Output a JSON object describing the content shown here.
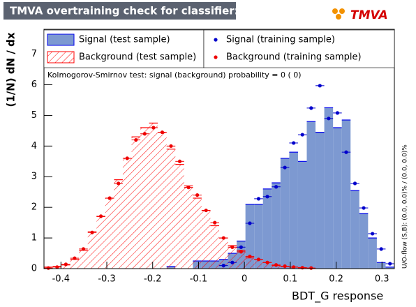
{
  "chart_data": {
    "type": "histogram",
    "title": "TMVA overtraining check for classifier: BDT_G",
    "logo": "TMVA",
    "xlabel": "BDT_G response",
    "ylabel": "(1/N) dN / dx",
    "annotation": "Kolmogorov-Smirnov test: signal (background) probability =    0 (    0)",
    "side_note": "U/O-flow (S,B): (0.0, 0.0)% / (0.0, 0.0)%",
    "xlim": [
      -0.437,
      0.327
    ],
    "ylim": [
      0,
      7.81
    ],
    "xticks": [
      -0.4,
      -0.3,
      -0.2,
      -0.1,
      0,
      0.1,
      0.2,
      0.3
    ],
    "yticks": [
      0,
      1,
      2,
      3,
      4,
      5,
      6,
      7
    ],
    "bins": [
      -0.437,
      -0.4179,
      -0.3988,
      -0.3797,
      -0.3606,
      -0.3415,
      -0.3224,
      -0.3033,
      -0.2842,
      -0.2651,
      -0.246,
      -0.2269,
      -0.2078,
      -0.1887,
      -0.1696,
      -0.1505,
      -0.1314,
      -0.1123,
      -0.0932,
      -0.0741,
      -0.055,
      -0.0359,
      -0.0168,
      0.0023,
      0.0214,
      0.0405,
      0.0596,
      0.0787,
      0.0978,
      0.1169,
      0.136,
      0.1551,
      0.1742,
      0.1933,
      0.2124,
      0.2315,
      0.2506,
      0.2697,
      0.2888,
      0.3079,
      0.327
    ],
    "series": [
      {
        "name": "Signal (test sample)",
        "style": "filled",
        "color": "#7d99d1",
        "edge": "#0000ee",
        "values": [
          0,
          0,
          0,
          0,
          0,
          0,
          0,
          0,
          0,
          0,
          0,
          0,
          0,
          0,
          0.07,
          0,
          0,
          0.25,
          0.25,
          0.25,
          0.3,
          0.5,
          0.9,
          2.1,
          2.1,
          2.6,
          2.8,
          3.6,
          3.8,
          3.5,
          4.8,
          4.45,
          5.25,
          4.6,
          4.85,
          2.55,
          1.8,
          1.0,
          0.2,
          0.05
        ]
      },
      {
        "name": "Background (test sample)",
        "style": "hatched",
        "color": "#ff0000",
        "edge": "#ff0000",
        "values": [
          0.05,
          0.07,
          0.12,
          0.3,
          0.6,
          1.2,
          1.7,
          2.3,
          2.9,
          3.6,
          4.3,
          4.6,
          4.75,
          4.45,
          3.9,
          3.4,
          2.7,
          2.3,
          1.9,
          1.4,
          1.0,
          0.75,
          0.6,
          0.35,
          0.3,
          0.2,
          0.1,
          0.07,
          0.05,
          0.03,
          0,
          0,
          0,
          0,
          0,
          0,
          0,
          0,
          0,
          0
        ]
      },
      {
        "name": "Signal (training sample)",
        "style": "points",
        "color": "#0000cc",
        "values": [
          null,
          null,
          null,
          null,
          null,
          null,
          null,
          null,
          null,
          null,
          null,
          null,
          null,
          null,
          null,
          null,
          null,
          null,
          null,
          null,
          0.1,
          0.2,
          0.7,
          1.48,
          2.28,
          2.35,
          2.67,
          3.3,
          4.1,
          4.37,
          5.24,
          5.97,
          4.9,
          5.08,
          3.8,
          2.78,
          1.98,
          1.14,
          0.64,
          0.16
        ]
      },
      {
        "name": "Background (training sample)",
        "style": "points",
        "color": "#ee0000",
        "values": [
          0.02,
          0.05,
          0.14,
          0.34,
          0.64,
          1.18,
          1.71,
          2.3,
          2.78,
          3.6,
          4.2,
          4.4,
          4.6,
          4.45,
          4.0,
          3.5,
          2.65,
          2.4,
          1.9,
          1.5,
          1.0,
          0.7,
          0.55,
          0.4,
          0.3,
          0.2,
          0.12,
          0.08,
          0.05,
          0.03,
          0.02,
          null,
          null,
          null,
          null,
          null,
          null,
          null,
          null,
          null
        ]
      }
    ]
  }
}
